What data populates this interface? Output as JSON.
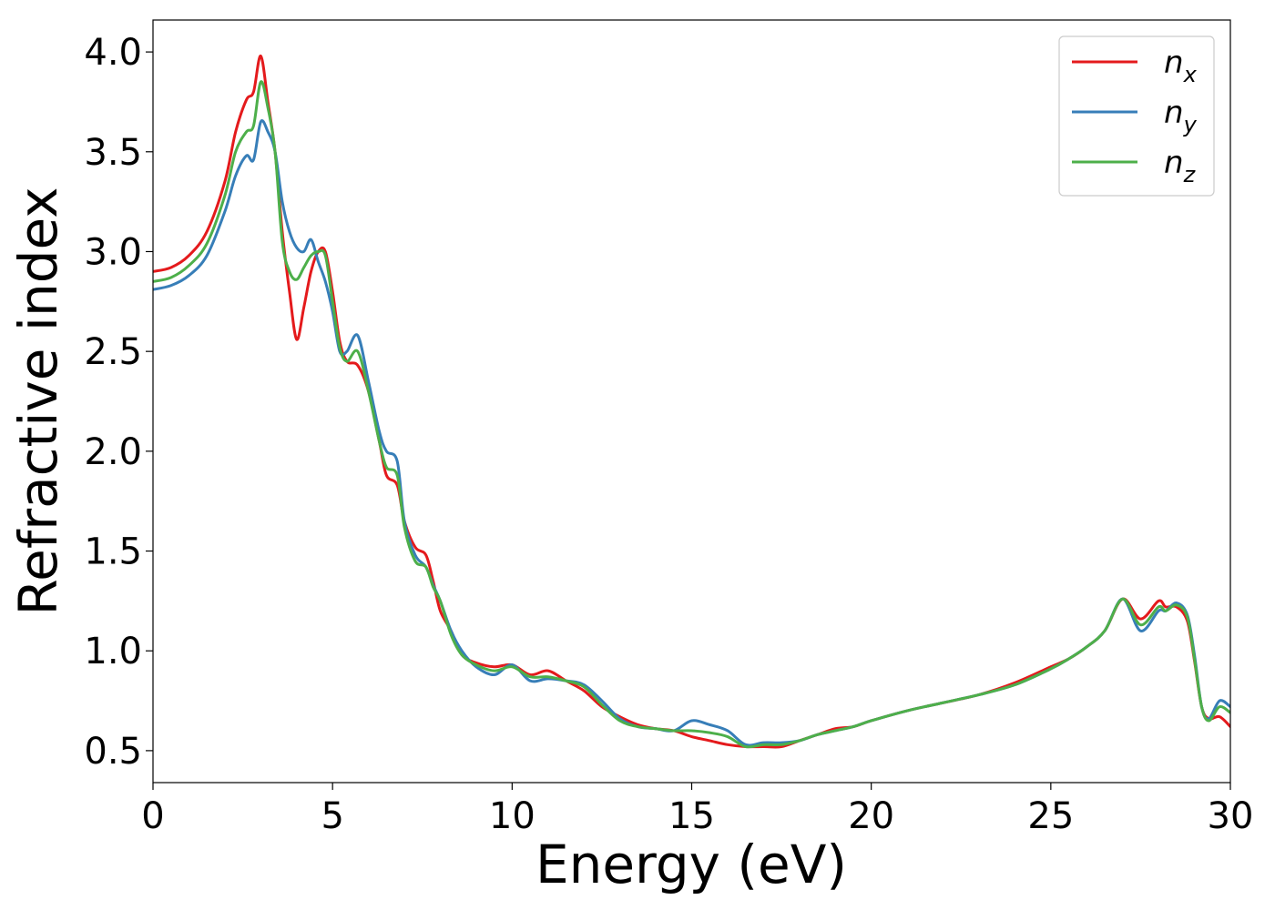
{
  "chart_data": {
    "type": "line",
    "xlabel": "Energy (eV)",
    "ylabel": "Refractive index",
    "xlim": [
      0,
      30
    ],
    "ylim": [
      0.34,
      4.16
    ],
    "xticks": [
      0,
      5,
      10,
      15,
      20,
      25,
      30
    ],
    "xtick_labels": [
      "0",
      "5",
      "10",
      "15",
      "20",
      "25",
      "30"
    ],
    "yticks": [
      0.5,
      1.0,
      1.5,
      2.0,
      2.5,
      3.0,
      3.5,
      4.0
    ],
    "ytick_labels": [
      "0.5",
      "1.0",
      "1.5",
      "2.0",
      "2.5",
      "3.0",
      "3.5",
      "4.0"
    ],
    "grid": false,
    "legend_position": "top-right",
    "series": [
      {
        "name": "n_x",
        "legend_base": "n",
        "legend_sub": "x",
        "color": "#e41a1c",
        "x": [
          0,
          0.5,
          1,
          1.5,
          2,
          2.3,
          2.6,
          2.8,
          3.0,
          3.2,
          3.4,
          3.6,
          3.8,
          4.0,
          4.2,
          4.4,
          4.6,
          4.8,
          5.0,
          5.2,
          5.4,
          5.7,
          6.0,
          6.3,
          6.5,
          6.8,
          7.0,
          7.3,
          7.6,
          7.8,
          8.0,
          8.3,
          8.6,
          9.0,
          9.5,
          10.0,
          10.5,
          11.0,
          11.5,
          12.0,
          12.5,
          13.0,
          13.5,
          14.0,
          14.5,
          15.0,
          15.5,
          16.0,
          16.5,
          17.0,
          17.5,
          18.0,
          18.5,
          19.0,
          19.5,
          20.0,
          21.0,
          22.0,
          23.0,
          24.0,
          25.0,
          25.5,
          26.0,
          26.5,
          27.0,
          27.5,
          28.0,
          28.2,
          28.5,
          28.8,
          29.0,
          29.2,
          29.4,
          29.7,
          30.0
        ],
        "y": [
          2.9,
          2.92,
          2.98,
          3.1,
          3.35,
          3.6,
          3.76,
          3.8,
          3.98,
          3.75,
          3.5,
          3.1,
          2.8,
          2.56,
          2.72,
          2.9,
          3.0,
          3.0,
          2.8,
          2.55,
          2.45,
          2.43,
          2.3,
          2.05,
          1.88,
          1.83,
          1.65,
          1.52,
          1.48,
          1.35,
          1.2,
          1.1,
          0.98,
          0.94,
          0.92,
          0.93,
          0.88,
          0.9,
          0.85,
          0.8,
          0.72,
          0.67,
          0.63,
          0.61,
          0.6,
          0.57,
          0.55,
          0.53,
          0.52,
          0.52,
          0.52,
          0.55,
          0.58,
          0.61,
          0.62,
          0.65,
          0.7,
          0.74,
          0.78,
          0.84,
          0.92,
          0.96,
          1.02,
          1.1,
          1.26,
          1.16,
          1.25,
          1.22,
          1.22,
          1.15,
          0.95,
          0.72,
          0.66,
          0.67,
          0.62
        ]
      },
      {
        "name": "n_y",
        "legend_base": "n",
        "legend_sub": "y",
        "color": "#377eb8",
        "x": [
          0,
          0.5,
          1,
          1.5,
          2,
          2.3,
          2.6,
          2.8,
          3.0,
          3.2,
          3.4,
          3.6,
          3.8,
          4.0,
          4.2,
          4.4,
          4.6,
          4.8,
          5.0,
          5.2,
          5.4,
          5.7,
          6.0,
          6.3,
          6.5,
          6.8,
          7.0,
          7.3,
          7.6,
          7.8,
          8.0,
          8.3,
          8.6,
          9.0,
          9.5,
          10.0,
          10.5,
          11.0,
          11.5,
          12.0,
          12.5,
          13.0,
          13.5,
          14.0,
          14.5,
          15.0,
          15.5,
          16.0,
          16.5,
          17.0,
          17.5,
          18.0,
          18.5,
          19.0,
          19.5,
          20.0,
          21.0,
          22.0,
          23.0,
          24.0,
          25.0,
          25.5,
          26.0,
          26.5,
          27.0,
          27.5,
          28.0,
          28.2,
          28.5,
          28.8,
          29.0,
          29.2,
          29.4,
          29.7,
          30.0
        ],
        "y": [
          2.81,
          2.83,
          2.88,
          2.98,
          3.2,
          3.38,
          3.48,
          3.46,
          3.65,
          3.6,
          3.5,
          3.25,
          3.1,
          3.02,
          3.0,
          3.06,
          2.95,
          2.85,
          2.7,
          2.5,
          2.5,
          2.58,
          2.35,
          2.1,
          2.0,
          1.95,
          1.65,
          1.48,
          1.42,
          1.33,
          1.25,
          1.1,
          1.0,
          0.92,
          0.88,
          0.93,
          0.85,
          0.86,
          0.85,
          0.83,
          0.75,
          0.66,
          0.62,
          0.61,
          0.6,
          0.65,
          0.63,
          0.6,
          0.53,
          0.54,
          0.54,
          0.55,
          0.58,
          0.6,
          0.62,
          0.65,
          0.7,
          0.74,
          0.78,
          0.83,
          0.91,
          0.96,
          1.02,
          1.1,
          1.26,
          1.1,
          1.2,
          1.2,
          1.24,
          1.18,
          0.98,
          0.72,
          0.66,
          0.75,
          0.72
        ]
      },
      {
        "name": "n_z",
        "legend_base": "n",
        "legend_sub": "z",
        "color": "#4daf4a",
        "x": [
          0,
          0.5,
          1,
          1.5,
          2,
          2.3,
          2.6,
          2.8,
          3.0,
          3.2,
          3.4,
          3.6,
          3.8,
          4.0,
          4.2,
          4.4,
          4.6,
          4.8,
          5.0,
          5.2,
          5.4,
          5.7,
          6.0,
          6.3,
          6.5,
          6.8,
          7.0,
          7.3,
          7.6,
          7.8,
          8.0,
          8.3,
          8.6,
          9.0,
          9.5,
          10.0,
          10.5,
          11.0,
          11.5,
          12.0,
          12.5,
          13.0,
          13.5,
          14.0,
          14.5,
          15.0,
          15.5,
          16.0,
          16.5,
          17.0,
          17.5,
          18.0,
          18.5,
          19.0,
          19.5,
          20.0,
          21.0,
          22.0,
          23.0,
          24.0,
          25.0,
          25.5,
          26.0,
          26.5,
          27.0,
          27.5,
          28.0,
          28.2,
          28.5,
          28.8,
          29.0,
          29.2,
          29.4,
          29.7,
          30.0
        ],
        "y": [
          2.85,
          2.87,
          2.93,
          3.04,
          3.28,
          3.5,
          3.6,
          3.63,
          3.85,
          3.72,
          3.5,
          3.05,
          2.9,
          2.86,
          2.92,
          2.98,
          3.0,
          2.98,
          2.75,
          2.52,
          2.45,
          2.5,
          2.3,
          2.05,
          1.92,
          1.88,
          1.62,
          1.45,
          1.42,
          1.32,
          1.25,
          1.08,
          0.98,
          0.93,
          0.9,
          0.92,
          0.87,
          0.87,
          0.85,
          0.82,
          0.73,
          0.65,
          0.62,
          0.61,
          0.6,
          0.6,
          0.59,
          0.57,
          0.52,
          0.53,
          0.53,
          0.55,
          0.58,
          0.6,
          0.62,
          0.65,
          0.7,
          0.74,
          0.78,
          0.83,
          0.91,
          0.96,
          1.02,
          1.1,
          1.26,
          1.13,
          1.22,
          1.2,
          1.23,
          1.17,
          0.96,
          0.72,
          0.65,
          0.72,
          0.69
        ]
      }
    ]
  }
}
